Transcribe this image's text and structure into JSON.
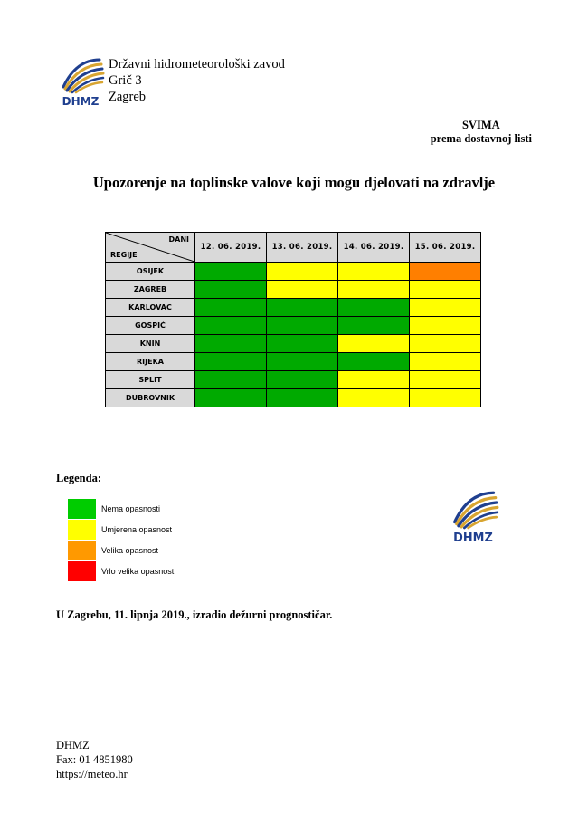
{
  "header": {
    "org_name": "Državni hidrometeorološki zavod",
    "street": "Grič 3",
    "city": "Zagreb",
    "logo_text": "DHMZ"
  },
  "recipient": {
    "line1": "SVIMA",
    "line2": "prema dostavnoj listi"
  },
  "title": "Upozorenje na toplinske valove koji mogu djelovati na zdravlje",
  "table": {
    "corner_top": "DANI",
    "corner_bottom": "REGIJE",
    "dates": [
      "12. 06. 2019.",
      "13. 06. 2019.",
      "14. 06. 2019.",
      "15. 06. 2019."
    ],
    "rows": [
      {
        "region": "OSIJEK",
        "levels": [
          "green",
          "yellow",
          "yellow",
          "orange"
        ]
      },
      {
        "region": "ZAGREB",
        "levels": [
          "green",
          "yellow",
          "yellow",
          "yellow"
        ]
      },
      {
        "region": "KARLOVAC",
        "levels": [
          "green",
          "green",
          "green",
          "yellow"
        ]
      },
      {
        "region": "GOSPIĆ",
        "levels": [
          "green",
          "green",
          "green",
          "yellow"
        ]
      },
      {
        "region": "KNIN",
        "levels": [
          "green",
          "green",
          "yellow",
          "yellow"
        ]
      },
      {
        "region": "RIJEKA",
        "levels": [
          "green",
          "green",
          "green",
          "yellow"
        ]
      },
      {
        "region": "SPLIT",
        "levels": [
          "green",
          "green",
          "yellow",
          "yellow"
        ]
      },
      {
        "region": "DUBROVNIK",
        "levels": [
          "green",
          "green",
          "yellow",
          "yellow"
        ]
      }
    ]
  },
  "colors": {
    "green": "#00aa00",
    "yellow": "#ffff00",
    "orange": "#ff7f00",
    "red": "#ff0000"
  },
  "legend": {
    "title": "Legenda:",
    "items": [
      {
        "label": "Nema opasnosti",
        "color": "#00cc00"
      },
      {
        "label": "Umjerena opasnost",
        "color": "#ffff00"
      },
      {
        "label": "Velika opasnost",
        "color": "#ff9900"
      },
      {
        "label": "Vrlo velika opasnost",
        "color": "#ff0000"
      }
    ]
  },
  "footer_note": "U Zagrebu, 11. lipnja 2019., izradio dežurni prognostičar.",
  "contact": {
    "name": "DHMZ",
    "fax": "Fax: 01 4851980",
    "web": "https://meteo.hr"
  }
}
